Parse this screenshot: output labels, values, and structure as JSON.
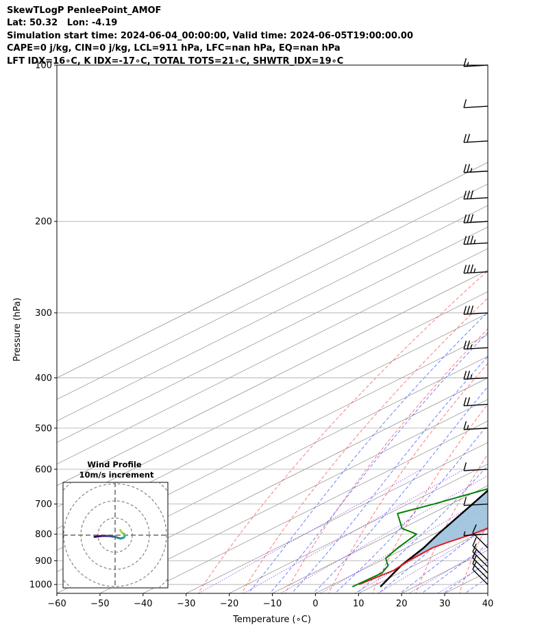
{
  "header": {
    "title": "SkewTLogP PenleePoint_AMOF",
    "location": "Lat: 50.32   Lon: -4.19",
    "times": "Simulation start time: 2024-06-04_00:00:00, Valid time: 2024-06-05T19:00:00.00",
    "indices_1": "CAPE=0 j/kg, CIN=0 j/kg, LCL=911 hPa, LFC=nan hPa, EQ=nan hPa",
    "indices_2": "LFT IDX=16∘C, K IDX=-17∘C, TOTAL TOTS=21∘C, SHWTR_IDX=19∘C"
  },
  "colors": {
    "temperature": "#e31a1c",
    "dewpoint": "#008000",
    "parcel": "#000000",
    "cape_fill": "#a0c4de",
    "dry_adiabats": "#ff4040",
    "moist_adiabats": "#2a4cff",
    "mixing_ratio": "#8a2be2",
    "isotherms": "#999999"
  },
  "chart_data": {
    "type": "skew-t log-p",
    "xlabel": "Temperature (∘C)",
    "ylabel": "Pressure (hPa)",
    "xlim": [
      -60,
      40
    ],
    "ylim": [
      1040,
      100
    ],
    "y_scale": "log",
    "x_ticks": [
      "−60",
      "−50",
      "−40",
      "−30",
      "−20",
      "−10",
      "0",
      "10",
      "20",
      "30",
      "40"
    ],
    "y_ticks": [
      "100",
      "200",
      "300",
      "400",
      "500",
      "600",
      "700",
      "800",
      "900",
      "1000"
    ],
    "grid": true,
    "temperature_profile": [
      [
        1000,
        6
      ],
      [
        940,
        7.5
      ],
      [
        900,
        6.5
      ],
      [
        850,
        6
      ],
      [
        830,
        7
      ],
      [
        800,
        9
      ],
      [
        730,
        11.5
      ],
      [
        700,
        11
      ],
      [
        600,
        8
      ],
      [
        550,
        7
      ],
      [
        500,
        5
      ],
      [
        450,
        3
      ],
      [
        400,
        1
      ],
      [
        350,
        -2
      ],
      [
        320,
        -4
      ],
      [
        300,
        -5
      ],
      [
        250,
        -9
      ],
      [
        200,
        -14
      ],
      [
        170,
        -16
      ],
      [
        150,
        -19
      ],
      [
        130,
        -20
      ],
      [
        115,
        -20
      ],
      [
        100,
        -21
      ]
    ],
    "dewpoint_profile": [
      [
        1010,
        5.5
      ],
      [
        950,
        6
      ],
      [
        920,
        4
      ],
      [
        890,
        0
      ],
      [
        850,
        -2
      ],
      [
        800,
        -4
      ],
      [
        780,
        -10
      ],
      [
        730,
        -18
      ],
      [
        700,
        -14
      ],
      [
        650,
        -8
      ],
      [
        600,
        -6
      ],
      [
        550,
        -9
      ],
      [
        500,
        -13
      ],
      [
        450,
        -18
      ],
      [
        400,
        -24
      ],
      [
        370,
        -27
      ],
      [
        340,
        -29
      ],
      [
        300,
        -26
      ],
      [
        280,
        -24
      ],
      [
        250,
        -26
      ],
      [
        220,
        -28
      ],
      [
        180,
        -31
      ],
      [
        160,
        -37
      ],
      [
        140,
        -40
      ],
      [
        100,
        -36
      ]
    ],
    "parcel_profile": [
      [
        1010,
        12
      ],
      [
        920,
        7
      ],
      [
        850,
        4
      ],
      [
        800,
        1
      ],
      [
        700,
        -5
      ],
      [
        600,
        -12
      ],
      [
        500,
        -20
      ],
      [
        400,
        -29
      ],
      [
        300,
        -41
      ],
      [
        250,
        -48
      ],
      [
        200,
        -56
      ],
      [
        150,
        -66
      ],
      [
        100,
        -80
      ]
    ],
    "wind_barbs": [
      {
        "p": 1000,
        "speed_kt": 10
      },
      {
        "p": 975,
        "speed_kt": 10
      },
      {
        "p": 950,
        "speed_kt": 10
      },
      {
        "p": 925,
        "speed_kt": 10
      },
      {
        "p": 900,
        "speed_kt": 10
      },
      {
        "p": 850,
        "speed_kt": 10
      },
      {
        "p": 800,
        "speed_kt": 5
      },
      {
        "p": 700,
        "speed_kt": 10
      },
      {
        "p": 600,
        "speed_kt": 10
      },
      {
        "p": 500,
        "speed_kt": 15
      },
      {
        "p": 450,
        "speed_kt": 20
      },
      {
        "p": 400,
        "speed_kt": 25
      },
      {
        "p": 350,
        "speed_kt": 25
      },
      {
        "p": 300,
        "speed_kt": 30
      },
      {
        "p": 250,
        "speed_kt": 35
      },
      {
        "p": 220,
        "speed_kt": 35
      },
      {
        "p": 200,
        "speed_kt": 30
      },
      {
        "p": 180,
        "speed_kt": 30
      },
      {
        "p": 160,
        "speed_kt": 25
      },
      {
        "p": 140,
        "speed_kt": 20
      },
      {
        "p": 120,
        "speed_kt": 10
      },
      {
        "p": 100,
        "speed_kt": 15
      }
    ],
    "hodograph": {
      "title_1": "Wind Profile",
      "title_2": "10m/s increment",
      "ring_step_ms": 10,
      "points_ms": [
        [
          -12,
          -1
        ],
        [
          -8,
          -0.5
        ],
        [
          -4,
          -0.5
        ],
        [
          0,
          -1
        ],
        [
          3,
          -2
        ],
        [
          5,
          -1.5
        ],
        [
          6,
          0
        ],
        [
          4,
          1.5
        ],
        [
          3,
          3
        ]
      ]
    }
  }
}
